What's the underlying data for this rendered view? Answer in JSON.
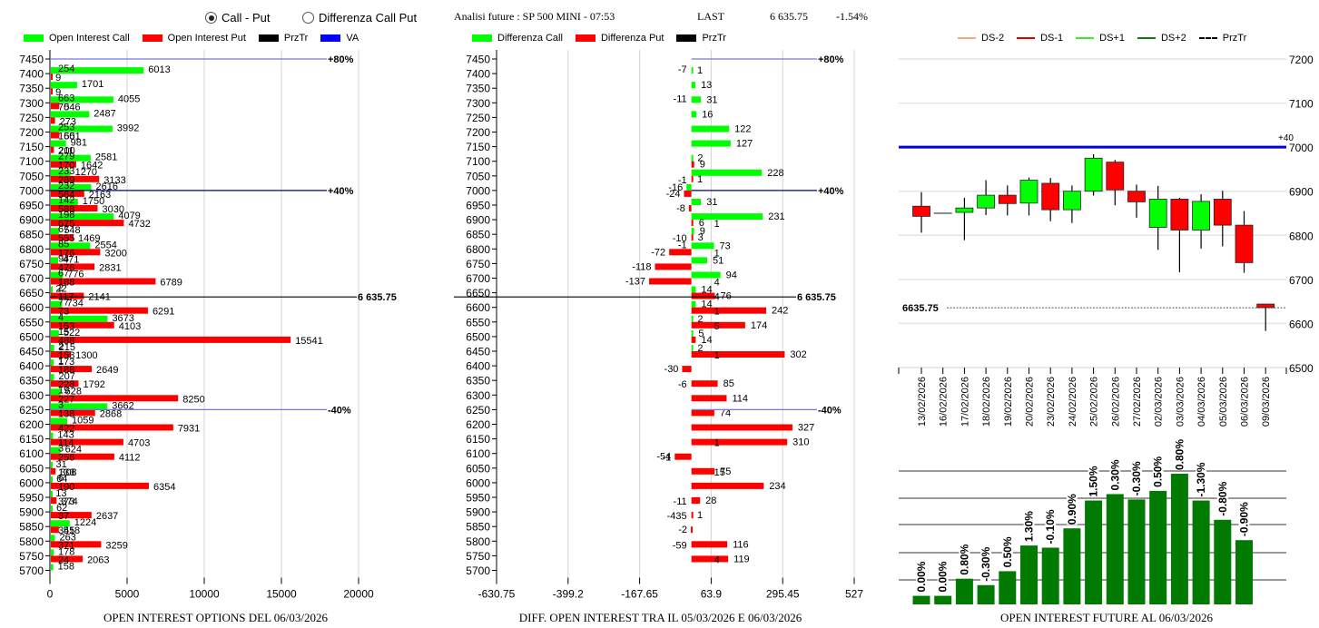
{
  "controls": {
    "radio_call_put": {
      "label": "Call - Put",
      "selected": true
    },
    "radio_diff": {
      "label": "Differenza Call Put",
      "selected": false
    }
  },
  "header": {
    "title": "Analisi future : SP 500 MINI - 07:53",
    "last_label": "LAST",
    "last_value": "6 635.75",
    "change": "-1.54%"
  },
  "colors": {
    "call": "#00ff00",
    "put": "#ff0000",
    "prztr": "#000000",
    "va": "#0000ff",
    "ds_minus2": "#f4a582",
    "ds_minus1": "#e00000",
    "ds_plus1": "#33ee33",
    "ds_plus2": "#117711",
    "bar_green": "#007a00"
  },
  "chart_data": [
    {
      "type": "bar",
      "orientation": "horizontal",
      "title": "OPEN INTEREST OPTIONS DEL 06/03/2026",
      "legend": [
        "Open Interest Call",
        "Open Interest Put",
        "PrzTr",
        "VA"
      ],
      "legend_position": "top",
      "xlim": [
        0,
        20000
      ],
      "xticks": [
        "0",
        "5000",
        "10000",
        "15000",
        "20000"
      ],
      "categories": [
        "7450",
        "7400",
        "7350",
        "7300",
        "7250",
        "7200",
        "7150",
        "7100",
        "7050",
        "7000",
        "6950",
        "6900",
        "6850",
        "6800",
        "6750",
        "6700",
        "6650",
        "6600",
        "6550",
        "6500",
        "6450",
        "6400",
        "6350",
        "6300",
        "6250",
        "6200",
        "6150",
        "6100",
        "6050",
        "6000",
        "5950",
        "5900",
        "5850",
        "5800",
        "5750",
        "5700"
      ],
      "series": [
        {
          "name": "Open Interest Call",
          "values": [
            0,
            6013,
            1701,
            4055,
            2487,
            3992,
            981,
            2581,
            1270,
            2616,
            1750,
            4079,
            548,
            2554,
            471,
            776,
            22,
            734,
            3673,
            522,
            215,
            173,
            207,
            628,
            3662,
            1059,
            143,
            624,
            31,
            64,
            13,
            62,
            1224,
            263,
            178,
            158
          ],
          "diff_labels": [
            null,
            254,
            null,
            663,
            null,
            253,
            null,
            279,
            233,
            232,
            142,
            198,
            67,
            85,
            94,
            67,
            2,
            77,
            4,
            15,
            2,
            1,
            null,
            19,
            3,
            null,
            null,
            3,
            null,
            6,
            null,
            null,
            null,
            null,
            null,
            null
          ]
        },
        {
          "name": "Open Interest Put",
          "values": [
            0,
            9,
            9,
            546,
            273,
            551,
            200,
            1642,
            3133,
            2163,
            3030,
            4732,
            1469,
            3200,
            2831,
            6789,
            2141,
            6291,
            4103,
            15541,
            1300,
            2649,
            1792,
            8250,
            2868,
            7931,
            4703,
            4112,
            308,
            6354,
            374,
            2637,
            518,
            3259,
            2063,
            0
          ],
          "diff_labels": [
            null,
            null,
            null,
            70,
            null,
            160,
            211,
            170,
            289,
            564,
            588,
            675,
            555,
            176,
            476,
            188,
            117,
            73,
            153,
            488,
            158,
            188,
            228,
            227,
            138,
            422,
            114,
            256,
            133,
            190,
            373,
            37,
            345,
            371,
            24,
            null
          ]
        }
      ],
      "annotations": [
        {
          "level": "7450",
          "text": "+80%",
          "line": "VA"
        },
        {
          "level": "7000",
          "text": "+40%",
          "line": "VA"
        },
        {
          "level": "6635.75",
          "text": "6 635.75",
          "line": "PrzTr"
        },
        {
          "level": "6250",
          "text": "-40%",
          "line": "VA"
        }
      ]
    },
    {
      "type": "bar",
      "orientation": "horizontal",
      "title": "DIFF. OPEN INTEREST TRA IL 05/03/2026 E 06/03/2026",
      "legend": [
        "Differenza Call",
        "Differenza Put",
        "PrzTr"
      ],
      "legend_position": "top",
      "xlim": [
        -630.75,
        527
      ],
      "xticks": [
        "-630.75",
        "-399.2",
        "-167.65",
        "63.9",
        "295.45",
        "527"
      ],
      "categories": [
        "7450",
        "7400",
        "7350",
        "7300",
        "7250",
        "7200",
        "7150",
        "7100",
        "7050",
        "7000",
        "6950",
        "6900",
        "6850",
        "6800",
        "6750",
        "6700",
        "6650",
        "6600",
        "6550",
        "6500",
        "6450",
        "6400",
        "6350",
        "6300",
        "6250",
        "6200",
        "6150",
        "6100",
        "6050",
        "6000",
        "5950",
        "5900",
        "5850",
        "5800",
        "5750",
        "5700"
      ],
      "series": [
        {
          "name": "Differenza Call",
          "values": [
            null,
            1,
            13,
            31,
            16,
            122,
            127,
            2,
            228,
            -16,
            31,
            231,
            9,
            73,
            51,
            94,
            14,
            14,
            2,
            5,
            2,
            null,
            null,
            null,
            null,
            null,
            null,
            null,
            null,
            null,
            null,
            null,
            null,
            null,
            null,
            null
          ],
          "neg_labels": [
            null,
            -7,
            null,
            -11,
            null,
            null,
            null,
            null,
            null,
            null,
            null,
            null,
            null,
            -1,
            null,
            null,
            null,
            null,
            null,
            null,
            null,
            null,
            null,
            null,
            null,
            null,
            null,
            null,
            null,
            null,
            null,
            null,
            null,
            null,
            null,
            null
          ]
        },
        {
          "name": "Differenza Put",
          "values": [
            null,
            null,
            null,
            null,
            null,
            null,
            null,
            9,
            1,
            -24,
            -8,
            6,
            3,
            -72,
            -118,
            -137,
            76,
            242,
            174,
            14,
            302,
            -30,
            85,
            114,
            74,
            327,
            310,
            -54,
            75,
            234,
            28,
            1,
            -2,
            116,
            119,
            null
          ],
          "neg_labels": [
            null,
            null,
            null,
            null,
            null,
            null,
            null,
            null,
            -1,
            null,
            null,
            null,
            -10,
            null,
            null,
            null,
            null,
            null,
            null,
            null,
            null,
            null,
            -6,
            null,
            null,
            null,
            null,
            -1,
            null,
            null,
            -11,
            -435,
            null,
            -59,
            null,
            null
          ],
          "inner_labels": [
            null,
            null,
            null,
            null,
            null,
            null,
            null,
            null,
            null,
            null,
            null,
            1,
            null,
            1,
            null,
            4,
            4,
            1,
            5,
            null,
            1,
            null,
            null,
            null,
            null,
            null,
            1,
            null,
            15,
            null,
            null,
            null,
            null,
            null,
            4,
            null
          ]
        }
      ],
      "annotations": [
        {
          "level": "7450",
          "text": "+80%"
        },
        {
          "level": "7000",
          "text": "+40%"
        },
        {
          "level": "6635.75",
          "text": "6 635.75"
        },
        {
          "level": "6250",
          "text": "-40%"
        }
      ]
    },
    {
      "type": "candlestick",
      "legend": [
        "DS-2",
        "DS-1",
        "DS+1",
        "DS+2",
        "PrzTr"
      ],
      "legend_position": "top",
      "ylim": [
        6500,
        7200
      ],
      "yticks": [
        "7200",
        "7100",
        "7000",
        "6900",
        "6800",
        "6700",
        "6600",
        "6500"
      ],
      "hline": {
        "value": 7000,
        "label": "+40"
      },
      "przTr": {
        "value": 6635.75,
        "label": "6635.75"
      },
      "x": [
        "13/02/2026",
        "16/02/2026",
        "17/02/2026",
        "18/02/2026",
        "19/02/2026",
        "20/02/2026",
        "23/02/2026",
        "24/02/2026",
        "25/02/2026",
        "26/02/2026",
        "27/02/2026",
        "02/03/2026",
        "03/03/2026",
        "04/03/2026",
        "05/03/2026",
        "06/03/2026",
        "09/03/2026"
      ],
      "ohlc": [
        [
          6866,
          6898,
          6806,
          6843
        ],
        [
          6850,
          6850,
          6850,
          6850
        ],
        [
          6852,
          6885,
          6789,
          6862
        ],
        [
          6862,
          6925,
          6846,
          6891
        ],
        [
          6891,
          6913,
          6845,
          6872
        ],
        [
          6873,
          6931,
          6845,
          6925
        ],
        [
          6918,
          6930,
          6832,
          6858
        ],
        [
          6858,
          6913,
          6828,
          6900
        ],
        [
          6900,
          6984,
          6890,
          6975
        ],
        [
          6966,
          6971,
          6868,
          6903
        ],
        [
          6900,
          6915,
          6840,
          6876
        ],
        [
          6818,
          6912,
          6767,
          6882
        ],
        [
          6882,
          6885,
          6716,
          6812
        ],
        [
          6812,
          6893,
          6770,
          6877
        ],
        [
          6882,
          6901,
          6775,
          6823
        ],
        [
          6823,
          6855,
          6715,
          6738
        ],
        [
          6644,
          6644,
          6583,
          6636
        ]
      ]
    },
    {
      "type": "bar",
      "title": "OPEN INTEREST FUTURE AL 06/03/2026",
      "categories": [
        "13/02/2026",
        "16/02/2026",
        "17/02/2026",
        "18/02/2026",
        "19/02/2026",
        "20/02/2026",
        "23/02/2026",
        "24/02/2026",
        "25/02/2026",
        "26/02/2026",
        "27/02/2026",
        "02/03/2026",
        "03/03/2026",
        "04/03/2026",
        "05/03/2026",
        "06/03/2026"
      ],
      "values": [
        0.08,
        0.08,
        0.24,
        0.18,
        0.31,
        0.55,
        0.53,
        0.71,
        0.97,
        1.03,
        0.98,
        1.06,
        1.22,
        0.97,
        0.79,
        0.6
      ],
      "value_unit": "relative",
      "labels": [
        "0.00%",
        "0.00%",
        "0.80%",
        "-0.30%",
        "0.50%",
        "1.30%",
        "-0.10%",
        "0.90%",
        "1.50%",
        "0.30%",
        "-0.30%",
        "0.50%",
        "0.80%",
        "-1.30%",
        "-0.80%",
        "-0.90%"
      ],
      "grid": true
    }
  ]
}
